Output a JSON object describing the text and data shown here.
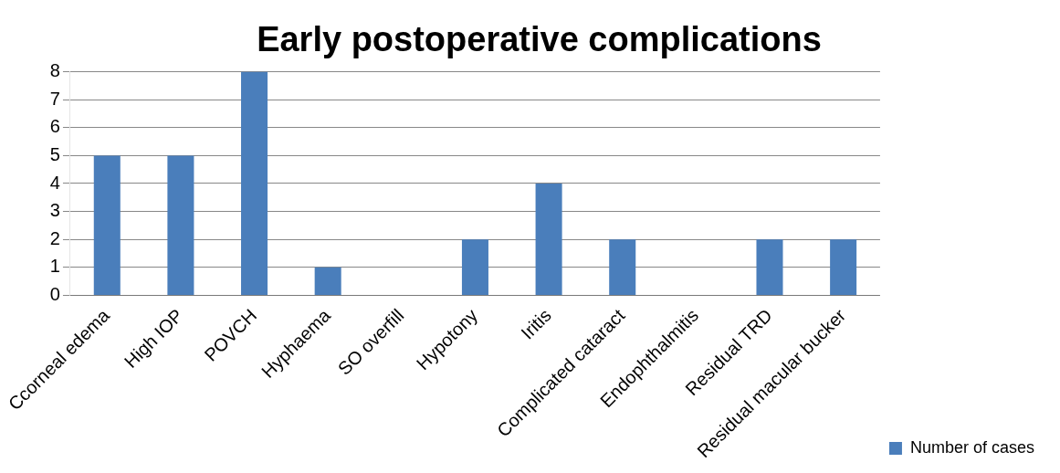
{
  "chart_data": {
    "type": "bar",
    "title": "Early postoperative complications",
    "categories": [
      "Ccorneal edema",
      "High IOP",
      "POVCH",
      "Hyphaema",
      "SO overfill",
      "Hypotony",
      "Iritis",
      "Complicated cataract",
      "Endophthalmitis",
      "Residual TRD",
      "Residual macular bucker"
    ],
    "series": [
      {
        "name": "Number of cases",
        "color": "#4a7ebb",
        "values": [
          5,
          5,
          8,
          1,
          0,
          2,
          4,
          2,
          0,
          2,
          2
        ]
      }
    ],
    "ylim": [
      0,
      8
    ],
    "yticks": [
      0,
      1,
      2,
      3,
      4,
      5,
      6,
      7,
      8
    ],
    "grid": "y",
    "legend": "bottom right"
  }
}
